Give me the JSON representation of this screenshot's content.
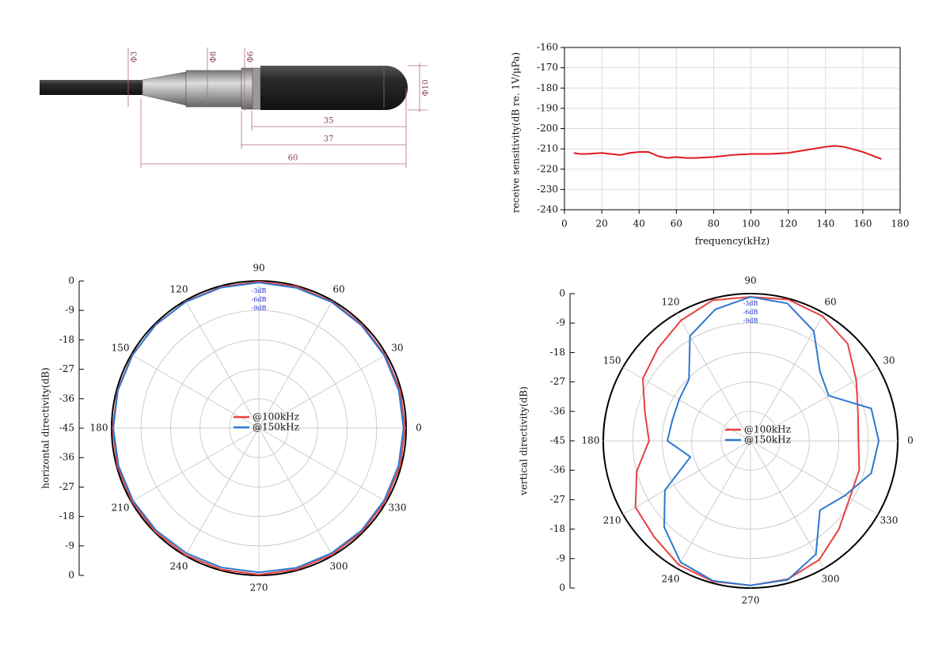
{
  "drawing": {
    "dimensions": [
      "Φ3",
      "Φ8",
      "Φ6",
      "Φ10",
      35,
      37,
      60
    ]
  },
  "chart_data": [
    {
      "type": "line",
      "ylabel": "receive sensitivity(dB re. 1V/μPa)",
      "xlabel": "frequency(kHz)",
      "x": [
        5,
        8,
        12,
        20,
        30,
        35,
        40,
        45,
        50,
        55,
        60,
        65,
        70,
        80,
        90,
        100,
        110,
        120,
        130,
        140,
        145,
        150,
        160,
        170
      ],
      "series": [
        {
          "name": "sensitivity",
          "color": "#e0191e",
          "values": [
            -212,
            -212.5,
            -212.5,
            -212,
            -213,
            -212,
            -211.5,
            -211.5,
            -213.5,
            -214.5,
            -214,
            -214.5,
            -214.5,
            -214,
            -213,
            -212.5,
            -212.5,
            -212,
            -210.5,
            -209,
            -208.5,
            -209,
            -211.5,
            -215
          ]
        }
      ],
      "xlim": [
        0,
        180
      ],
      "xticks": [
        0,
        20,
        40,
        60,
        80,
        100,
        120,
        140,
        160,
        180
      ],
      "ylim": [
        -240,
        -160
      ],
      "yticks": [
        -240,
        -230,
        -220,
        -210,
        -200,
        -190,
        -180,
        -170,
        -160
      ],
      "grid": true
    },
    {
      "type": "polar",
      "ylabel": "horizontal directivity(dB)",
      "theta": [
        0,
        15,
        30,
        45,
        60,
        75,
        90,
        105,
        120,
        135,
        150,
        165,
        180,
        195,
        210,
        225,
        240,
        255,
        270,
        285,
        300,
        315,
        330,
        345
      ],
      "series": [
        {
          "name": "@100kHz",
          "color": "#e8403f",
          "values": [
            -0.3,
            -0.3,
            -0.4,
            -0.3,
            -0.3,
            -0.2,
            -0.2,
            -0.3,
            -0.3,
            -0.4,
            -0.3,
            -0.3,
            -0.3,
            -0.2,
            -0.2,
            -0.2,
            -0.2,
            -0.3,
            -0.2,
            -0.3,
            -0.3,
            -0.3,
            -0.3,
            -0.3
          ]
        },
        {
          "name": "@150kHz",
          "color": "#2f78d0",
          "values": [
            -0.8,
            -0.7,
            -0.7,
            -0.6,
            -0.5,
            -0.6,
            -0.5,
            -0.5,
            -0.4,
            -0.3,
            -0.4,
            -0.4,
            -0.5,
            -0.6,
            -0.6,
            -0.7,
            -0.8,
            -0.9,
            -0.9,
            -0.8,
            -0.8,
            -0.7,
            -0.8,
            -0.8
          ]
        }
      ],
      "rlim": [
        -45,
        0
      ],
      "rticks": [
        0,
        -9,
        -18,
        -27,
        -36,
        -45
      ],
      "thetaticks": [
        0,
        30,
        60,
        90,
        120,
        150,
        180,
        210,
        240,
        270,
        300,
        330
      ],
      "ring_labels": [
        "-3dB",
        "-6dB",
        "-9dB"
      ]
    },
    {
      "type": "polar",
      "ylabel": "vertical directivity(dB)",
      "theta": [
        0,
        15,
        30,
        45,
        60,
        75,
        90,
        105,
        120,
        135,
        150,
        165,
        180,
        195,
        210,
        225,
        240,
        255,
        270,
        285,
        300,
        315,
        330,
        345
      ],
      "series": [
        {
          "name": "@100kHz",
          "color": "#e8403f",
          "values": [
            -12,
            -11,
            -7.7,
            -3,
            -1,
            -0.3,
            -1,
            -0.5,
            -2.5,
            -5,
            -7,
            -11.6,
            -14,
            -9,
            -4.4,
            -3.4,
            -1.2,
            -0.5,
            -0.8,
            -1.2,
            -3,
            -6.8,
            -10,
            -10.6
          ]
        },
        {
          "name": "@150kHz",
          "color": "#2f78d0",
          "values": [
            -5.8,
            -6.8,
            -17.4,
            -15,
            -6.3,
            -1.5,
            -1,
            -3.4,
            -8,
            -18.4,
            -19.8,
            -20.3,
            -19.6,
            -26,
            -14.8,
            -7.7,
            -2.2,
            -0.7,
            -0.8,
            -1,
            -5,
            -15,
            -11.6,
            -6.8
          ]
        }
      ],
      "rlim": [
        -45,
        0
      ],
      "rticks": [
        0,
        -9,
        -18,
        -27,
        -36,
        -45
      ],
      "thetaticks": [
        0,
        30,
        60,
        90,
        120,
        150,
        180,
        210,
        240,
        270,
        300,
        330
      ],
      "ring_labels": [
        "-3dB",
        "-6dB",
        "-9dB"
      ]
    }
  ]
}
